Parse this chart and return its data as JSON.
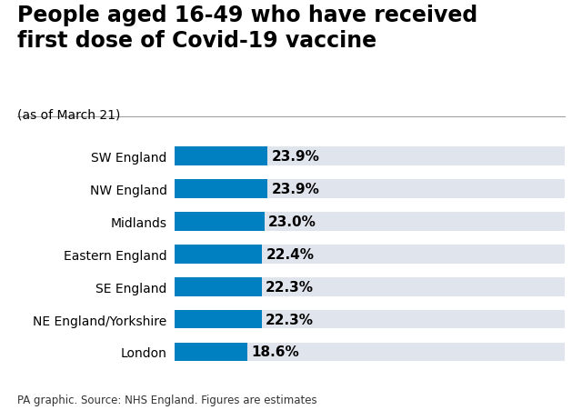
{
  "title": "People aged 16-49 who have received\nfirst dose of Covid-19 vaccine",
  "subtitle": "(as of March 21)",
  "footer": "PA graphic. Source: NHS England. Figures are estimates",
  "categories": [
    "SW England",
    "NW England",
    "Midlands",
    "Eastern England",
    "SE England",
    "NE England/Yorkshire",
    "London"
  ],
  "values": [
    23.9,
    23.9,
    23.0,
    22.4,
    22.3,
    22.3,
    18.6
  ],
  "labels": [
    "23.9%",
    "23.9%",
    "23.0%",
    "22.4%",
    "22.3%",
    "22.3%",
    "18.6%"
  ],
  "bar_color": "#0080C0",
  "bg_color": "#E0E4EC",
  "figure_bg": "#FFFFFF",
  "max_value": 100,
  "title_fontsize": 17,
  "subtitle_fontsize": 10,
  "label_fontsize": 11,
  "cat_fontsize": 10,
  "footer_fontsize": 8.5,
  "bar_height": 0.58,
  "bar_gap": 0.12
}
